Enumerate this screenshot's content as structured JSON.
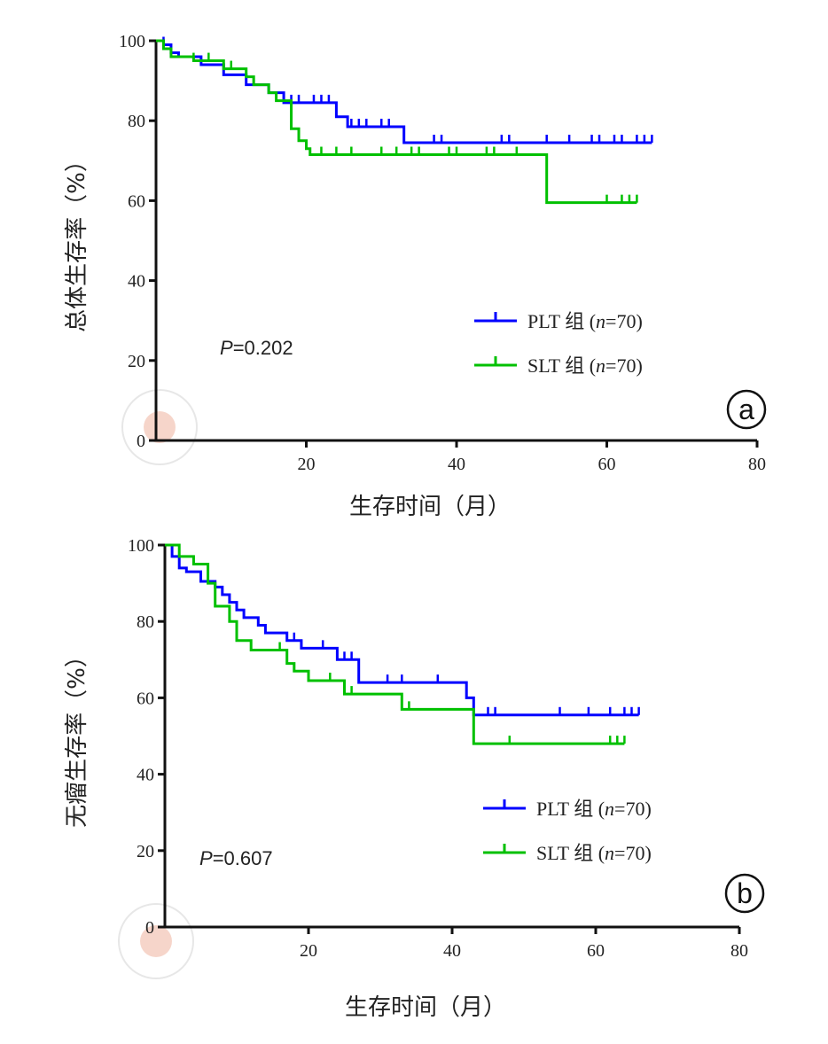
{
  "chart_data": [
    {
      "type": "line",
      "panel_label": "a",
      "xlabel": "生存时间（月）",
      "ylabel": "总体生存率（%）",
      "xlim": [
        0,
        80
      ],
      "ylim": [
        0,
        100
      ],
      "xticks": [
        20,
        40,
        60,
        80
      ],
      "yticks": [
        0,
        20,
        40,
        60,
        80,
        100
      ],
      "annotation": {
        "p_label": "P",
        "p_value": "=0.202"
      },
      "series": [
        {
          "name": "PLT 组",
          "n_label": "n",
          "n_value": "=70",
          "color": "#0000ff",
          "steps": [
            [
              0,
              100
            ],
            [
              1,
              99
            ],
            [
              2,
              97
            ],
            [
              3,
              96
            ],
            [
              6,
              94
            ],
            [
              9,
              91.5
            ],
            [
              12,
              89
            ],
            [
              15,
              87
            ],
            [
              17,
              84.5
            ],
            [
              24,
              81
            ],
            [
              25.5,
              78.5
            ],
            [
              33,
              74.5
            ],
            [
              66,
              74.5
            ]
          ],
          "censored": [
            1,
            13,
            18,
            19,
            21,
            22,
            23,
            26,
            27,
            28,
            30,
            31,
            37,
            38,
            46,
            47,
            52,
            55,
            58,
            59,
            61,
            62,
            64,
            65,
            66
          ]
        },
        {
          "name": "SLT 组",
          "n_label": "n",
          "n_value": "=70",
          "color": "#00c000",
          "steps": [
            [
              0,
              100
            ],
            [
              1,
              98
            ],
            [
              2,
              96
            ],
            [
              5,
              95
            ],
            [
              9,
              93
            ],
            [
              12,
              91
            ],
            [
              13,
              89
            ],
            [
              15,
              87
            ],
            [
              16,
              85
            ],
            [
              18,
              78
            ],
            [
              19,
              75
            ],
            [
              20,
              73
            ],
            [
              20.5,
              71.5
            ],
            [
              52,
              59.5
            ],
            [
              64,
              59.5
            ]
          ],
          "censored": [
            5,
            7,
            10,
            13,
            18,
            22,
            24,
            26,
            30,
            32,
            34,
            35,
            39,
            40,
            44,
            45,
            48,
            60,
            62,
            63,
            64
          ]
        }
      ]
    },
    {
      "type": "line",
      "panel_label": "b",
      "xlabel": "生存时间（月）",
      "ylabel": "无瘤生存率（%）",
      "xlim": [
        0,
        80
      ],
      "ylim": [
        0,
        100
      ],
      "xticks": [
        20,
        40,
        60,
        80
      ],
      "yticks": [
        0,
        20,
        40,
        60,
        80,
        100
      ],
      "annotation": {
        "p_label": "P",
        "p_value": "=0.607"
      },
      "series": [
        {
          "name": "PLT 组",
          "n_label": "n",
          "n_value": "=70",
          "color": "#0000ff",
          "steps": [
            [
              0,
              100
            ],
            [
              1,
              97
            ],
            [
              2,
              94
            ],
            [
              3,
              93
            ],
            [
              5,
              90.5
            ],
            [
              7,
              89
            ],
            [
              8,
              87
            ],
            [
              9,
              85
            ],
            [
              10,
              83
            ],
            [
              11,
              81
            ],
            [
              13,
              79
            ],
            [
              14,
              77
            ],
            [
              17,
              75
            ],
            [
              19,
              73
            ],
            [
              24,
              70
            ],
            [
              27,
              64
            ],
            [
              42,
              60
            ],
            [
              43,
              55.5
            ],
            [
              66,
              55.5
            ]
          ],
          "censored": [
            10,
            18,
            19,
            22,
            25,
            26,
            27,
            31,
            33,
            38,
            45,
            46,
            55,
            59,
            62,
            64,
            65,
            66
          ]
        },
        {
          "name": "SLT 组",
          "n_label": "n",
          "n_value": "=70",
          "color": "#00c000",
          "steps": [
            [
              0,
              100
            ],
            [
              2,
              97
            ],
            [
              4,
              95
            ],
            [
              6,
              90
            ],
            [
              7,
              84
            ],
            [
              9,
              80
            ],
            [
              10,
              75
            ],
            [
              12,
              72.5
            ],
            [
              17,
              69
            ],
            [
              18,
              67
            ],
            [
              20,
              64.5
            ],
            [
              25,
              61
            ],
            [
              33,
              57
            ],
            [
              43,
              48
            ],
            [
              64,
              48
            ]
          ],
          "censored": [
            4,
            16,
            18,
            23,
            26,
            34,
            48,
            62,
            63,
            64
          ]
        }
      ]
    }
  ]
}
